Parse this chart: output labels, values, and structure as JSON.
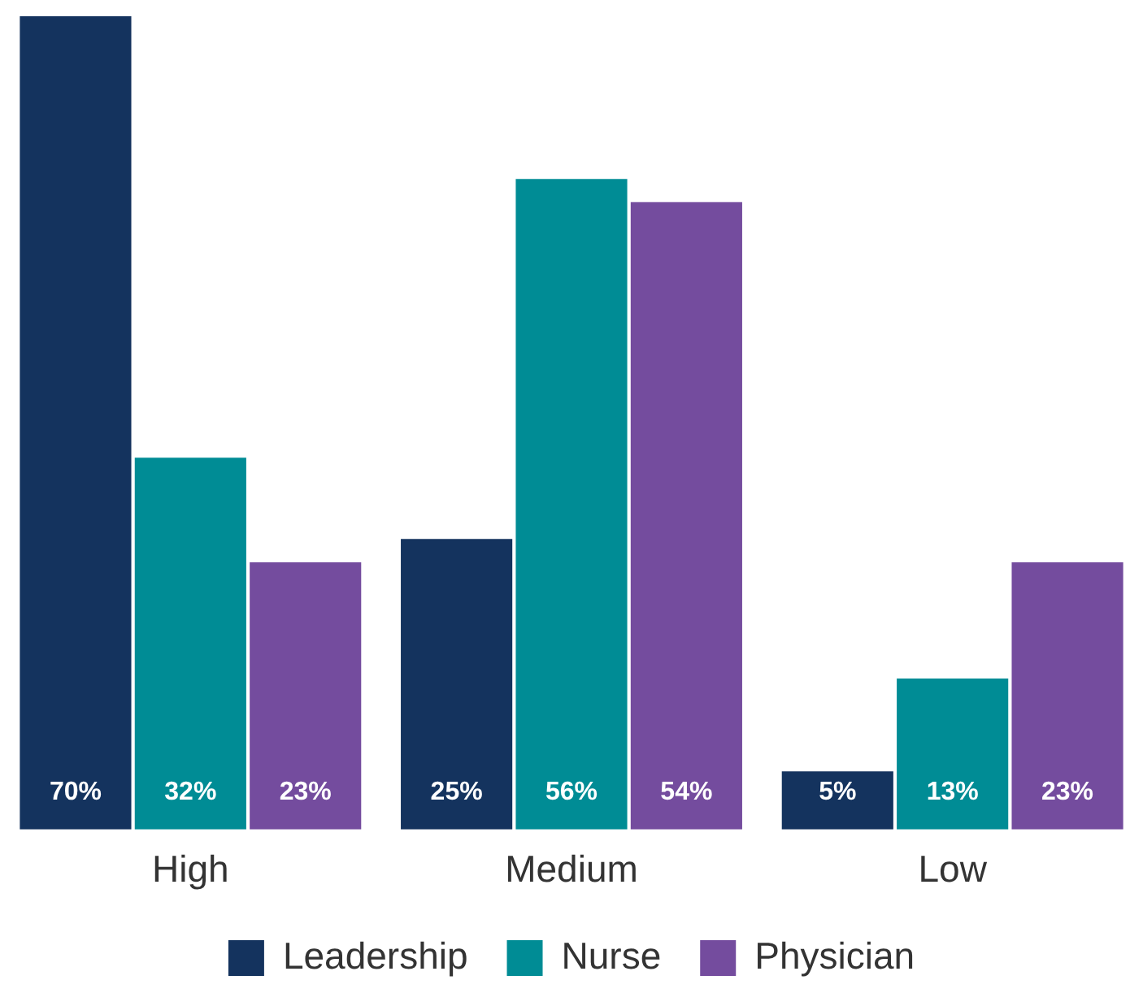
{
  "chart_data": {
    "type": "bar",
    "categories": [
      "High",
      "Medium",
      "Low"
    ],
    "series": [
      {
        "name": "Leadership",
        "color": "#14335e",
        "values": [
          70,
          25,
          5
        ],
        "value_labels": [
          "70%",
          "25%",
          "5%"
        ]
      },
      {
        "name": "Nurse",
        "color": "#008c95",
        "values": [
          32,
          56,
          13
        ],
        "value_labels": [
          "32%",
          "56%",
          "13%"
        ]
      },
      {
        "name": "Physician",
        "color": "#744c9e",
        "values": [
          23,
          54,
          23
        ],
        "value_labels": [
          "23%",
          "54%",
          "23%"
        ]
      }
    ],
    "legend": "bottom",
    "grid": false
  }
}
